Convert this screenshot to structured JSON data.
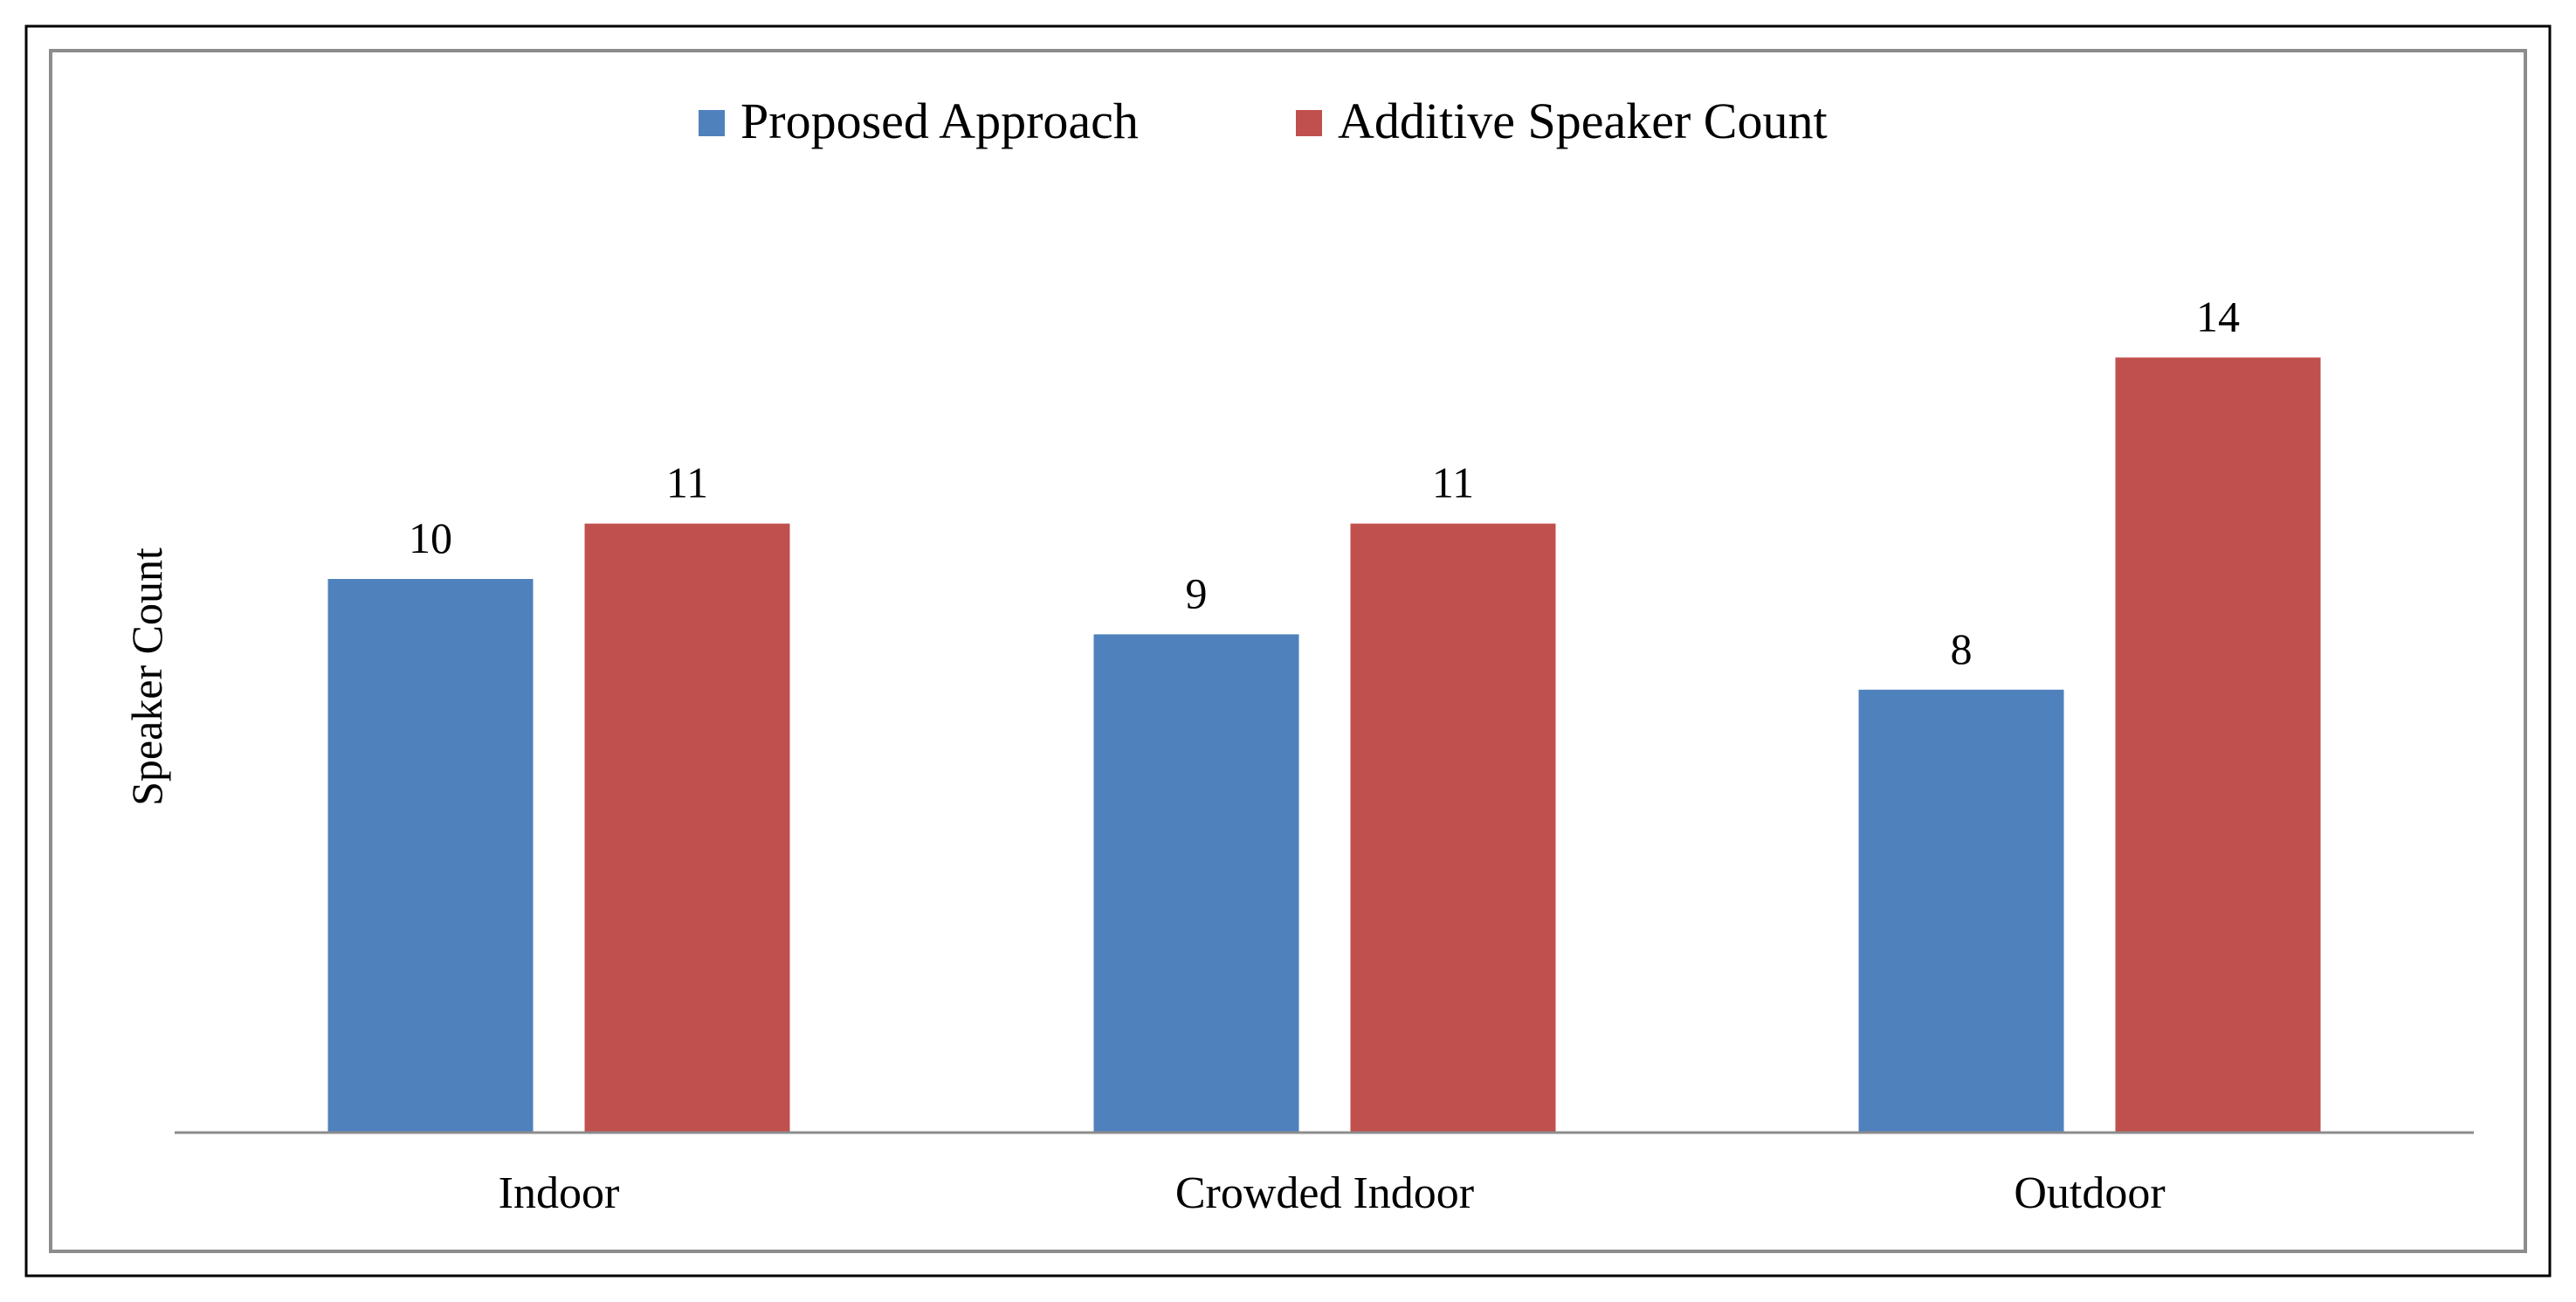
{
  "chart_data": {
    "type": "bar",
    "title": "",
    "xlabel": "",
    "ylabel": "Speaker Count",
    "categories": [
      "Indoor",
      "Crowded Indoor",
      "Outdoor"
    ],
    "series": [
      {
        "name": "Proposed Approach",
        "color": "#4F81BD",
        "values": [
          10,
          9,
          8
        ]
      },
      {
        "name": "Additive Speaker Count",
        "color": "#C0504D",
        "values": [
          11,
          11,
          14
        ]
      }
    ],
    "ylim": [
      0,
      20
    ],
    "grid": false,
    "legend_position": "top-center",
    "data_labels": true
  }
}
